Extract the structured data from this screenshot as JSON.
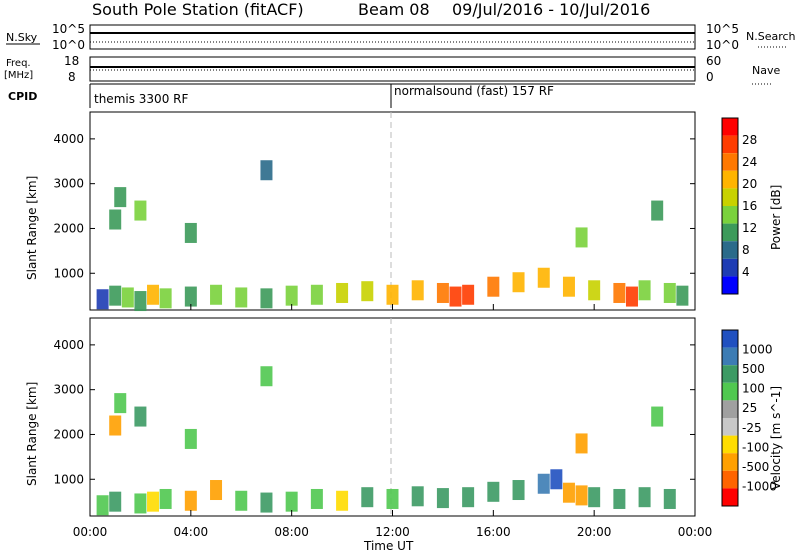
{
  "header": {
    "station": "South Pole Station (fitACF)",
    "beam": "Beam 08",
    "dates": "09/Jul/2016 - 10/Jul/2016"
  },
  "top_panels": {
    "nsky_label": "N.Sky",
    "nsky_ticks": [
      "10^5",
      "10^0"
    ],
    "nsearch_label": "N.Search",
    "nsearch_ticks": [
      "10^5",
      "10^0"
    ],
    "freq_label_1": "Freq.",
    "freq_label_2": "[MHz]",
    "freq_ticks": [
      "18",
      "8"
    ],
    "nave_label": "Nave",
    "nave_ticks": [
      "60",
      "0"
    ],
    "cpid_label": "CPID",
    "cpid_segments": [
      "themis 3300 RF",
      "normalsound (fast) 157 RF"
    ]
  },
  "chart_data": [
    {
      "type": "heatmap",
      "name": "power",
      "ylabel": "Slant Range [km]",
      "ylim": [
        180,
        4600
      ],
      "yticks": [
        "1000",
        "2000",
        "3000",
        "4000"
      ],
      "colorbar_label": "Power [dB]",
      "colorbar_ticks": [
        "28",
        "24",
        "20",
        "16",
        "12",
        "8",
        "4"
      ],
      "colorbar_colors": [
        "#ff0000",
        "#ff3c00",
        "#ff7800",
        "#ffb400",
        "#c8d200",
        "#7ad23c",
        "#3c9a5a",
        "#2a6a8a",
        "#1e3cb4",
        "#0000ff"
      ],
      "cells": [
        [
          0.5,
          420,
          3
        ],
        [
          1.0,
          500,
          10
        ],
        [
          1.5,
          460,
          14
        ],
        [
          2.0,
          380,
          8
        ],
        [
          2.5,
          520,
          18
        ],
        [
          3.0,
          440,
          12
        ],
        [
          4.0,
          480,
          9
        ],
        [
          5.0,
          520,
          11
        ],
        [
          6.0,
          460,
          13
        ],
        [
          7.0,
          440,
          10
        ],
        [
          8.0,
          500,
          12
        ],
        [
          9.0,
          520,
          14
        ],
        [
          10.0,
          560,
          16
        ],
        [
          11.0,
          600,
          15
        ],
        [
          12.0,
          520,
          18
        ],
        [
          13.0,
          620,
          20
        ],
        [
          14.0,
          560,
          22
        ],
        [
          14.5,
          480,
          26
        ],
        [
          15.0,
          520,
          24
        ],
        [
          16.0,
          700,
          22
        ],
        [
          17.0,
          800,
          20
        ],
        [
          18.0,
          900,
          18
        ],
        [
          19.0,
          700,
          20
        ],
        [
          20.0,
          620,
          16
        ],
        [
          21.0,
          560,
          22
        ],
        [
          21.5,
          480,
          26
        ],
        [
          22.0,
          620,
          14
        ],
        [
          23.0,
          560,
          12
        ],
        [
          23.5,
          500,
          10
        ],
        [
          1.0,
          2200,
          10
        ],
        [
          2.0,
          2400,
          12
        ],
        [
          1.2,
          2700,
          8
        ],
        [
          7.0,
          3300,
          6
        ],
        [
          4.0,
          1900,
          9
        ],
        [
          19.5,
          1800,
          11
        ],
        [
          22.5,
          2400,
          8
        ]
      ]
    },
    {
      "type": "heatmap",
      "name": "velocity",
      "ylabel": "Slant Range [km]",
      "xlabel": "Time UT",
      "ylim": [
        180,
        4600
      ],
      "yticks": [
        "1000",
        "2000",
        "3000",
        "4000"
      ],
      "xticks": [
        "00:00",
        "04:00",
        "08:00",
        "12:00",
        "16:00",
        "20:00",
        "00:00"
      ],
      "colorbar_label": "Velocity [m s^-1]",
      "colorbar_ticks": [
        "1000",
        "500",
        "100",
        "25",
        "-25",
        "-100",
        "-500",
        "-1000"
      ],
      "colorbar_colors": [
        "#2050c0",
        "#3c7cb4",
        "#3c9a64",
        "#50c850",
        "#a0a0a0",
        "#c8c8c8",
        "#ffdc00",
        "#ffa000",
        "#ff6400",
        "#ff0000"
      ],
      "cells": [
        [
          0.5,
          420,
          80
        ],
        [
          1.0,
          500,
          120
        ],
        [
          2.0,
          460,
          60
        ],
        [
          2.5,
          500,
          -80
        ],
        [
          3.0,
          560,
          40
        ],
        [
          4.0,
          520,
          -120
        ],
        [
          5.0,
          760,
          -200
        ],
        [
          6.0,
          520,
          30
        ],
        [
          7.0,
          480,
          100
        ],
        [
          8.0,
          500,
          80
        ],
        [
          9.0,
          560,
          60
        ],
        [
          10.0,
          520,
          -60
        ],
        [
          11.0,
          600,
          120
        ],
        [
          12.0,
          560,
          80
        ],
        [
          13.0,
          620,
          140
        ],
        [
          14.0,
          580,
          160
        ],
        [
          15.0,
          600,
          200
        ],
        [
          16.0,
          720,
          300
        ],
        [
          17.0,
          760,
          260
        ],
        [
          18.0,
          900,
          800
        ],
        [
          18.5,
          1000,
          1000
        ],
        [
          19.0,
          700,
          -400
        ],
        [
          19.5,
          640,
          -300
        ],
        [
          20.0,
          600,
          120
        ],
        [
          21.0,
          560,
          160
        ],
        [
          22.0,
          600,
          100
        ],
        [
          23.0,
          560,
          140
        ],
        [
          1.0,
          2200,
          -300
        ],
        [
          2.0,
          2400,
          100
        ],
        [
          1.2,
          2700,
          80
        ],
        [
          7.0,
          3300,
          60
        ],
        [
          4.0,
          1900,
          40
        ],
        [
          19.5,
          1800,
          -150
        ],
        [
          22.5,
          2400,
          60
        ]
      ]
    }
  ]
}
